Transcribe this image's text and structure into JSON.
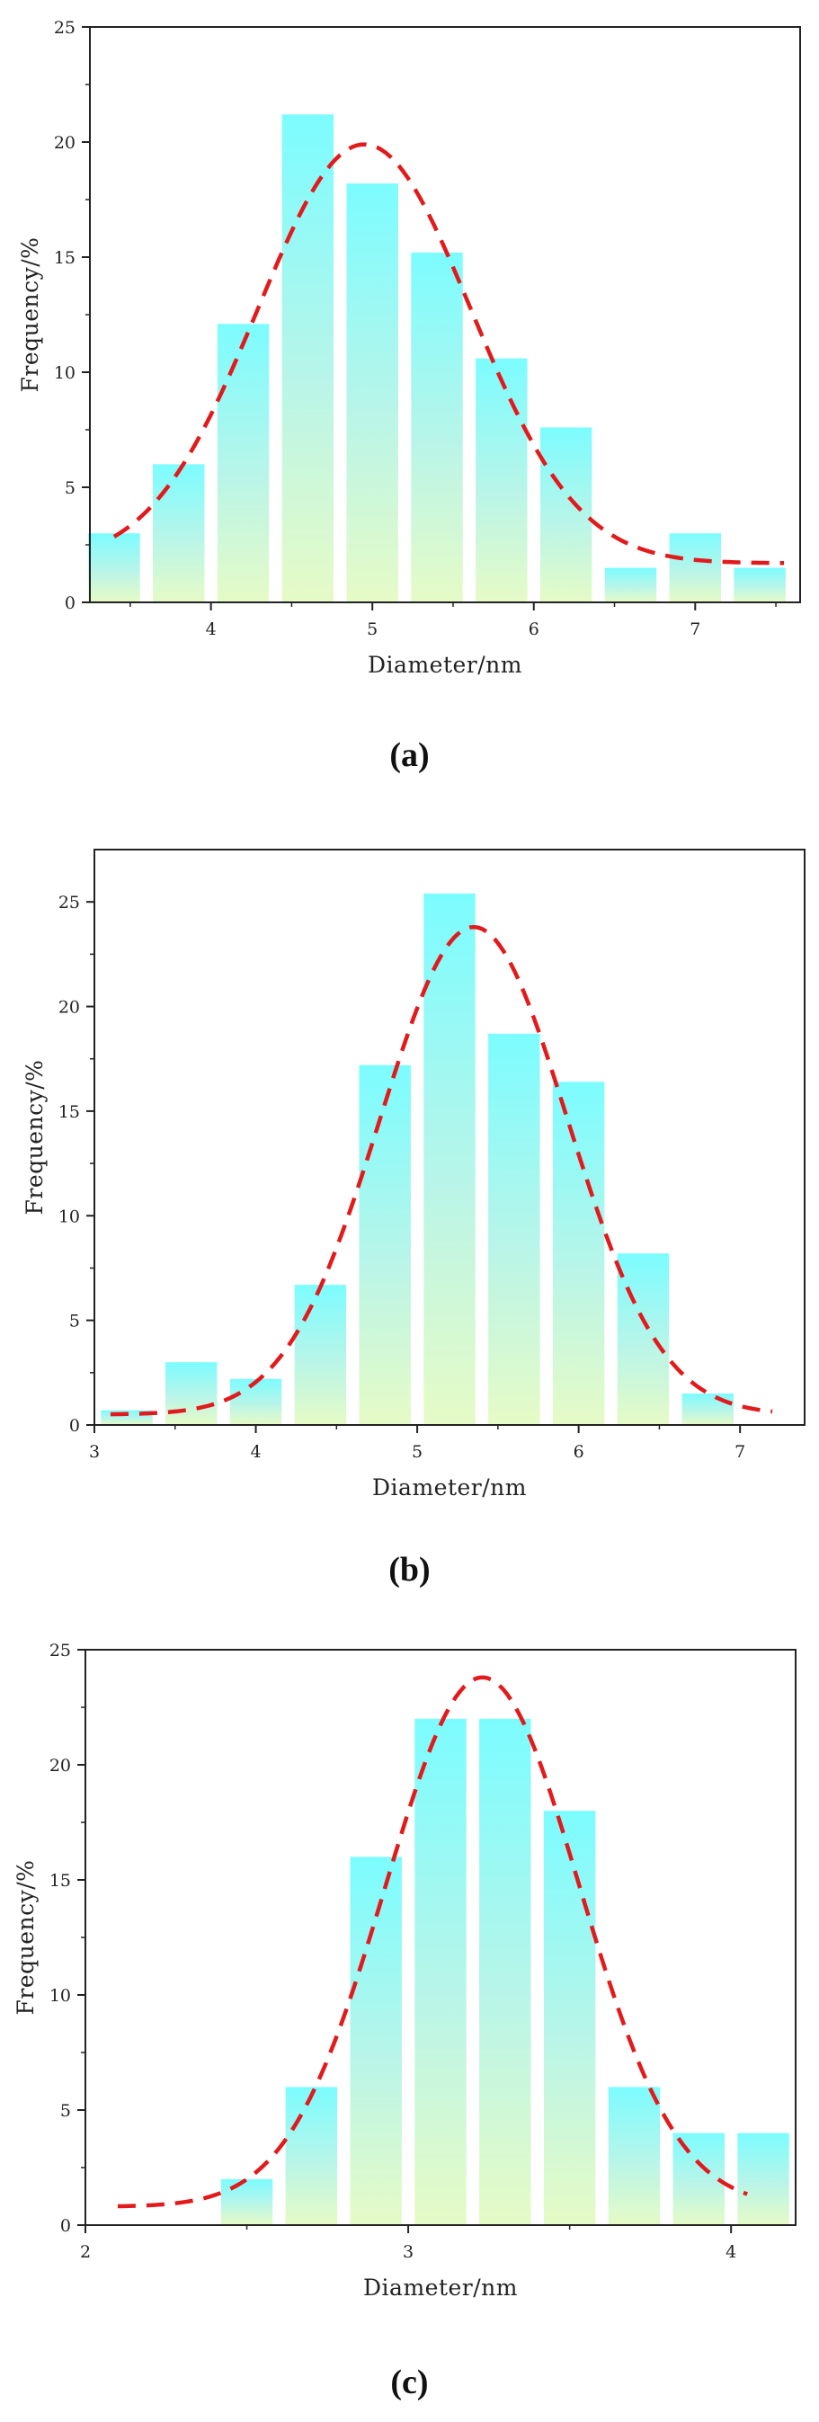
{
  "chart_data": [
    {
      "type": "bar",
      "panel_label": "(a)",
      "xlabel": "Diameter/nm",
      "ylabel": "Frequency/%",
      "xlim": [
        3.25,
        7.65
      ],
      "ylim": [
        0,
        25
      ],
      "xticks": [
        4,
        5,
        6,
        7
      ],
      "yticks": [
        0,
        5,
        10,
        15,
        20,
        25
      ],
      "bar_width": 0.32,
      "bars": [
        {
          "x": 3.4,
          "value": 3.0
        },
        {
          "x": 3.8,
          "value": 6.0
        },
        {
          "x": 4.2,
          "value": 12.1
        },
        {
          "x": 4.6,
          "value": 21.2
        },
        {
          "x": 5.0,
          "value": 18.2
        },
        {
          "x": 5.4,
          "value": 15.2
        },
        {
          "x": 5.8,
          "value": 10.6
        },
        {
          "x": 6.2,
          "value": 7.6
        },
        {
          "x": 6.6,
          "value": 1.5
        },
        {
          "x": 7.0,
          "value": 3.0
        },
        {
          "x": 7.4,
          "value": 1.5
        }
      ],
      "fit": {
        "type": "gaussian",
        "amplitude": 18.2,
        "center": 4.95,
        "sigma": 0.66,
        "baseline": 1.7,
        "x_range": [
          3.4,
          7.55
        ]
      }
    },
    {
      "type": "bar",
      "panel_label": "(b)",
      "xlabel": "Diameter/nm",
      "ylabel": "Frequency/%",
      "xlim": [
        3.0,
        7.4
      ],
      "ylim": [
        0,
        27.5
      ],
      "xticks": [
        3,
        4,
        5,
        6,
        7
      ],
      "yticks": [
        0,
        5,
        10,
        15,
        20,
        25
      ],
      "bar_width": 0.32,
      "bars": [
        {
          "x": 3.2,
          "value": 0.7
        },
        {
          "x": 3.6,
          "value": 3.0
        },
        {
          "x": 4.0,
          "value": 2.2
        },
        {
          "x": 4.4,
          "value": 6.7
        },
        {
          "x": 4.8,
          "value": 17.2
        },
        {
          "x": 5.2,
          "value": 25.4
        },
        {
          "x": 5.6,
          "value": 18.7
        },
        {
          "x": 6.0,
          "value": 16.4
        },
        {
          "x": 6.4,
          "value": 8.2
        },
        {
          "x": 6.8,
          "value": 1.5
        }
      ],
      "fit": {
        "type": "gaussian",
        "amplitude": 23.3,
        "center": 5.35,
        "sigma": 0.58,
        "baseline": 0.5,
        "x_range": [
          3.1,
          7.2
        ]
      }
    },
    {
      "type": "bar",
      "panel_label": "(c)",
      "xlabel": "Diameter/nm",
      "ylabel": "Frequency/%",
      "xlim": [
        2.0,
        4.2
      ],
      "ylim": [
        0,
        25
      ],
      "xticks": [
        2,
        3,
        4
      ],
      "yticks": [
        0,
        5,
        10,
        15,
        20,
        25
      ],
      "bar_width": 0.16,
      "bars": [
        {
          "x": 2.5,
          "value": 2.0
        },
        {
          "x": 2.7,
          "value": 6.0
        },
        {
          "x": 2.9,
          "value": 16.0
        },
        {
          "x": 3.1,
          "value": 22.0
        },
        {
          "x": 3.3,
          "value": 22.0
        },
        {
          "x": 3.5,
          "value": 18.0
        },
        {
          "x": 3.7,
          "value": 6.0
        },
        {
          "x": 3.9,
          "value": 4.0
        },
        {
          "x": 4.1,
          "value": 4.0
        }
      ],
      "fit": {
        "type": "gaussian",
        "amplitude": 23.0,
        "center": 3.23,
        "sigma": 0.3,
        "baseline": 0.8,
        "x_range": [
          2.1,
          4.05
        ]
      }
    }
  ]
}
